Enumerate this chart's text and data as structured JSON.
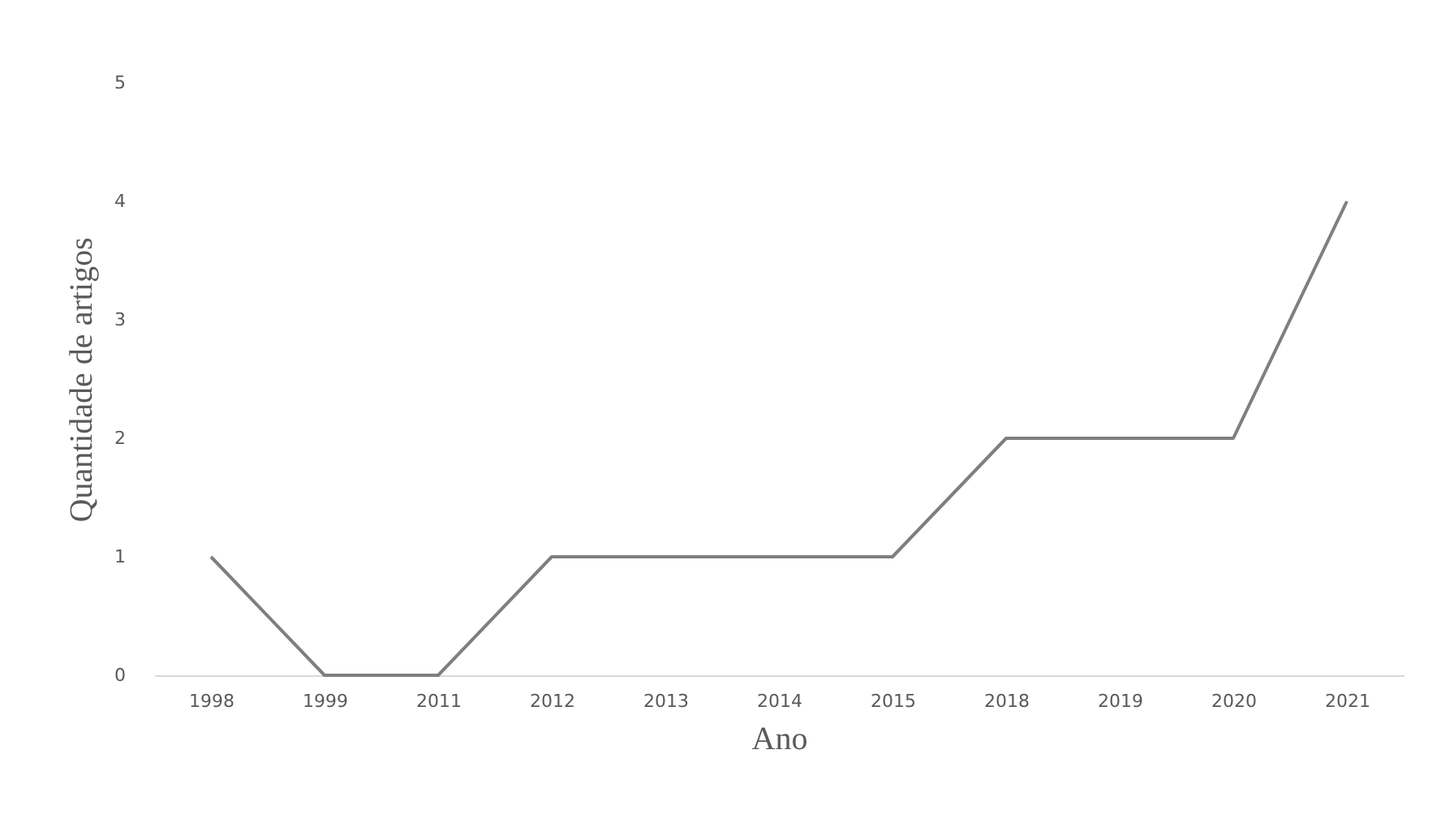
{
  "chart_data": {
    "type": "line",
    "xlabel": "Ano",
    "ylabel": "Quantidade de artigos",
    "categories": [
      "1998",
      "1999",
      "2011",
      "2012",
      "2013",
      "2014",
      "2015",
      "2018",
      "2019",
      "2020",
      "2021"
    ],
    "series": [
      {
        "color": "#7f7f7f",
        "values": [
          1,
          0,
          0,
          1,
          1,
          1,
          1,
          2,
          2,
          2,
          4
        ]
      }
    ],
    "ylim": [
      0,
      5
    ],
    "yticks": [
      0,
      1,
      2,
      3,
      4,
      5
    ],
    "grid": false,
    "marker": "none",
    "line_style": "solid"
  }
}
